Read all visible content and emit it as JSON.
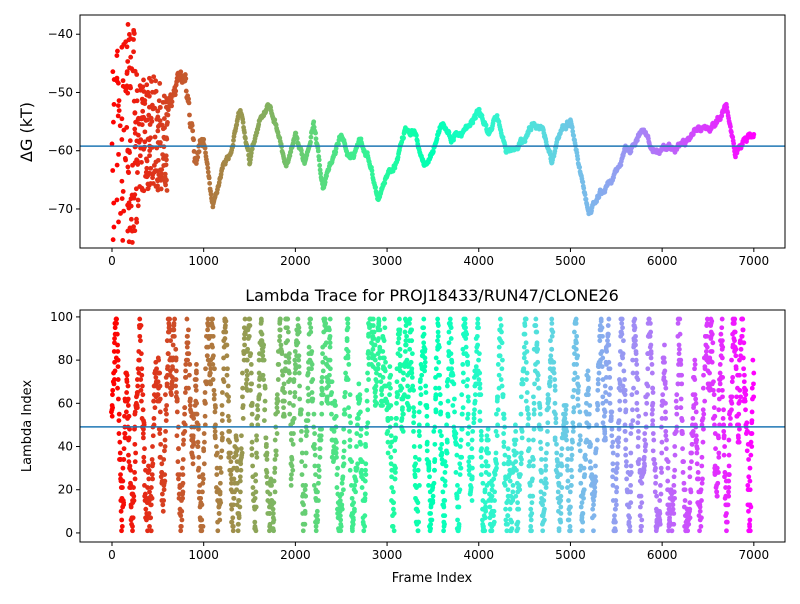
{
  "chart_data": [
    {
      "type": "scatter",
      "title": "",
      "xlabel": "",
      "ylabel": "ΔG (kT)",
      "xlim": [
        -349,
        7340
      ],
      "ylim": [
        -76.7,
        -36.7
      ],
      "xticks": [
        0,
        1000,
        2000,
        3000,
        4000,
        5000,
        6000,
        7000
      ],
      "yticks": [
        -40,
        -50,
        -60,
        -70
      ],
      "hline": -59.2,
      "hline_color": "#1f77b4",
      "colormap": "rainbow (red at frame 0, purple at frame 7000)",
      "early_noisy_range_frames": [
        0,
        600
      ],
      "trace_frames_step": 100,
      "trace_start_frame": 600,
      "trace_values": [
        -55,
        -50,
        -48,
        -62,
        -58,
        -70,
        -63,
        -60,
        -53,
        -62,
        -55,
        -52,
        -56,
        -63,
        -58,
        -62,
        -55,
        -66,
        -62,
        -57,
        -62,
        -58,
        -61,
        -68,
        -64,
        -62,
        -56,
        -57,
        -62,
        -60,
        -55,
        -58,
        -57,
        -56,
        -53,
        -57,
        -54,
        -60,
        -60,
        -58,
        -55,
        -56,
        -62,
        -56,
        -55,
        -63,
        -71,
        -68,
        -66,
        -64,
        -60,
        -59,
        -56,
        -60,
        -60,
        -60,
        -59,
        -58,
        -56,
        -56,
        -55,
        -52,
        -60,
        -58,
        -57
      ]
    },
    {
      "type": "scatter",
      "title": "Lambda Trace for PROJ18433/RUN47/CLONE26",
      "xlabel": "Frame Index",
      "ylabel": "Lambda Index",
      "xlim": [
        -349,
        7340
      ],
      "ylim": [
        -4.2,
        103.2
      ],
      "xticks": [
        0,
        1000,
        2000,
        3000,
        4000,
        5000,
        6000,
        7000
      ],
      "yticks": [
        0,
        20,
        40,
        60,
        80,
        100
      ],
      "hline": 49.1,
      "hline_color": "#1f77b4",
      "lambda_range": [
        1,
        99
      ],
      "frame_range": [
        0,
        7000
      ]
    }
  ]
}
